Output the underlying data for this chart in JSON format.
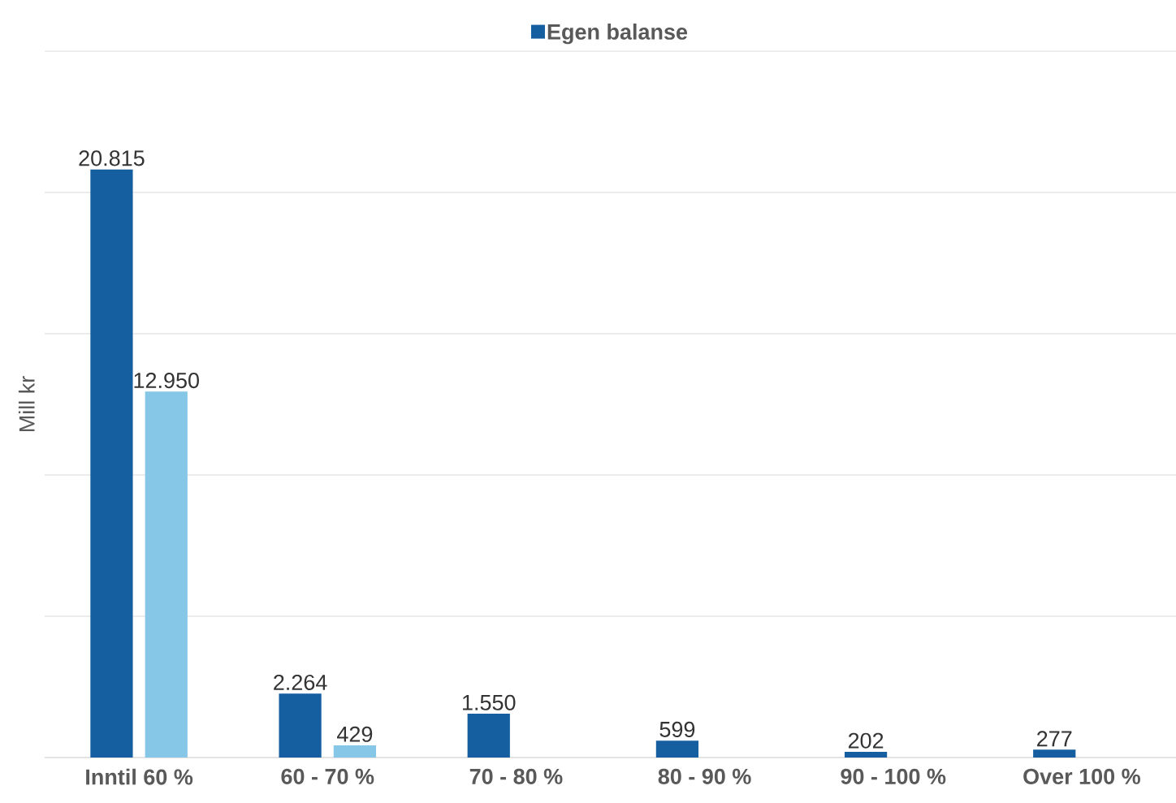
{
  "chart_data": {
    "type": "bar",
    "ylabel": "Mill kr",
    "categories": [
      "Inntil 60 %",
      "60 - 70 %",
      "70 - 80 %",
      "80 - 90 %",
      "90 - 100 %",
      "Over 100 %"
    ],
    "series": [
      {
        "name": "Egen balanse",
        "color": "#155fa0",
        "values": [
          20815,
          2264,
          1550,
          599,
          202,
          277
        ],
        "value_labels": [
          "20.815",
          "2.264",
          "1.550",
          "599",
          "202",
          "277"
        ]
      },
      {
        "color": "#86c6e6",
        "values": [
          12950,
          429,
          null,
          null,
          null,
          null
        ],
        "value_labels": [
          "12.950",
          "429",
          null,
          null,
          null,
          null
        ]
      }
    ],
    "ylim": [
      0,
      25000
    ],
    "yticks": [
      {
        "value": 0,
        "label": null
      },
      {
        "value": 5000,
        "label": null
      },
      {
        "value": 10000,
        "label": null
      },
      {
        "value": 15000,
        "label": null
      },
      {
        "value": 20000,
        "label": null
      },
      {
        "value": 25000,
        "label": null
      }
    ],
    "grid": "y",
    "legend": "top",
    "tick_labels": "x"
  }
}
